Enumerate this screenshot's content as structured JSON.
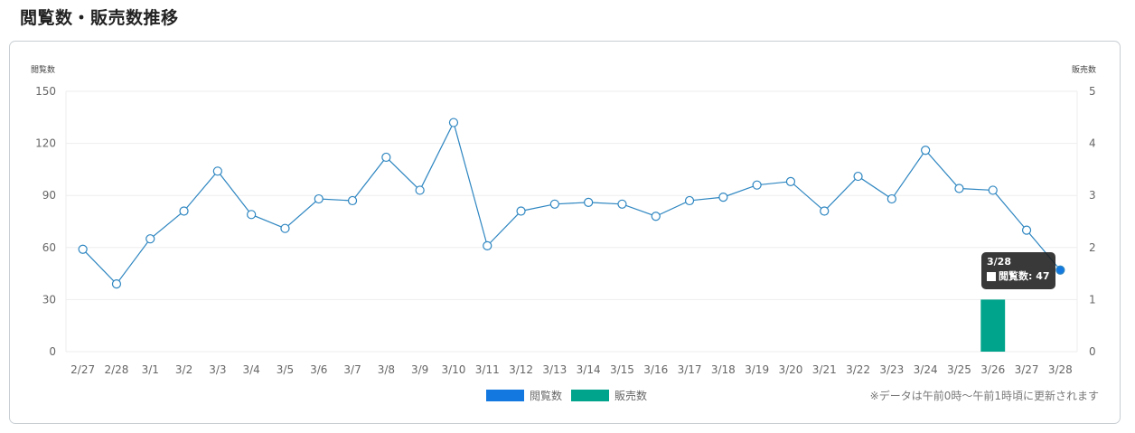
{
  "page": {
    "title": "閲覧数・販売数推移",
    "note": "※データは午前0時〜午前1時頃に更新されます"
  },
  "colors": {
    "views_line": "#2e86c1",
    "views_legend": "#1379e0",
    "sales_bar": "#00a38b",
    "grid": "#eeeeee"
  },
  "chart_data": {
    "type": "line",
    "categories": [
      "2/27",
      "2/28",
      "3/1",
      "3/2",
      "3/3",
      "3/4",
      "3/5",
      "3/6",
      "3/7",
      "3/8",
      "3/9",
      "3/10",
      "3/11",
      "3/12",
      "3/13",
      "3/14",
      "3/15",
      "3/16",
      "3/17",
      "3/18",
      "3/19",
      "3/20",
      "3/21",
      "3/22",
      "3/23",
      "3/24",
      "3/25",
      "3/26",
      "3/27",
      "3/28"
    ],
    "series": [
      {
        "name": "閲覧数",
        "type": "line",
        "axis": "left",
        "values": [
          59,
          39,
          65,
          81,
          104,
          79,
          71,
          88,
          87,
          112,
          93,
          132,
          61,
          81,
          85,
          86,
          85,
          78,
          87,
          89,
          96,
          98,
          81,
          101,
          88,
          116,
          94,
          93,
          70,
          47
        ]
      },
      {
        "name": "販売数",
        "type": "bar",
        "axis": "right",
        "values": [
          0,
          0,
          0,
          0,
          0,
          0,
          0,
          0,
          0,
          0,
          0,
          0,
          0,
          0,
          0,
          0,
          0,
          0,
          0,
          0,
          0,
          0,
          0,
          0,
          0,
          0,
          0,
          1,
          0,
          0
        ]
      }
    ],
    "left_axis": {
      "title": "閲覧数",
      "ticks": [
        "0",
        "30",
        "60",
        "90",
        "120",
        "150"
      ],
      "range": [
        0,
        150
      ]
    },
    "right_axis": {
      "title": "販売数",
      "ticks": [
        "0",
        "1",
        "2",
        "3",
        "4",
        "5"
      ],
      "range": [
        0,
        5
      ]
    },
    "grid": true,
    "legend_position": "bottom",
    "tooltip": {
      "title": "3/28",
      "label": "閲覧数: 47"
    }
  }
}
